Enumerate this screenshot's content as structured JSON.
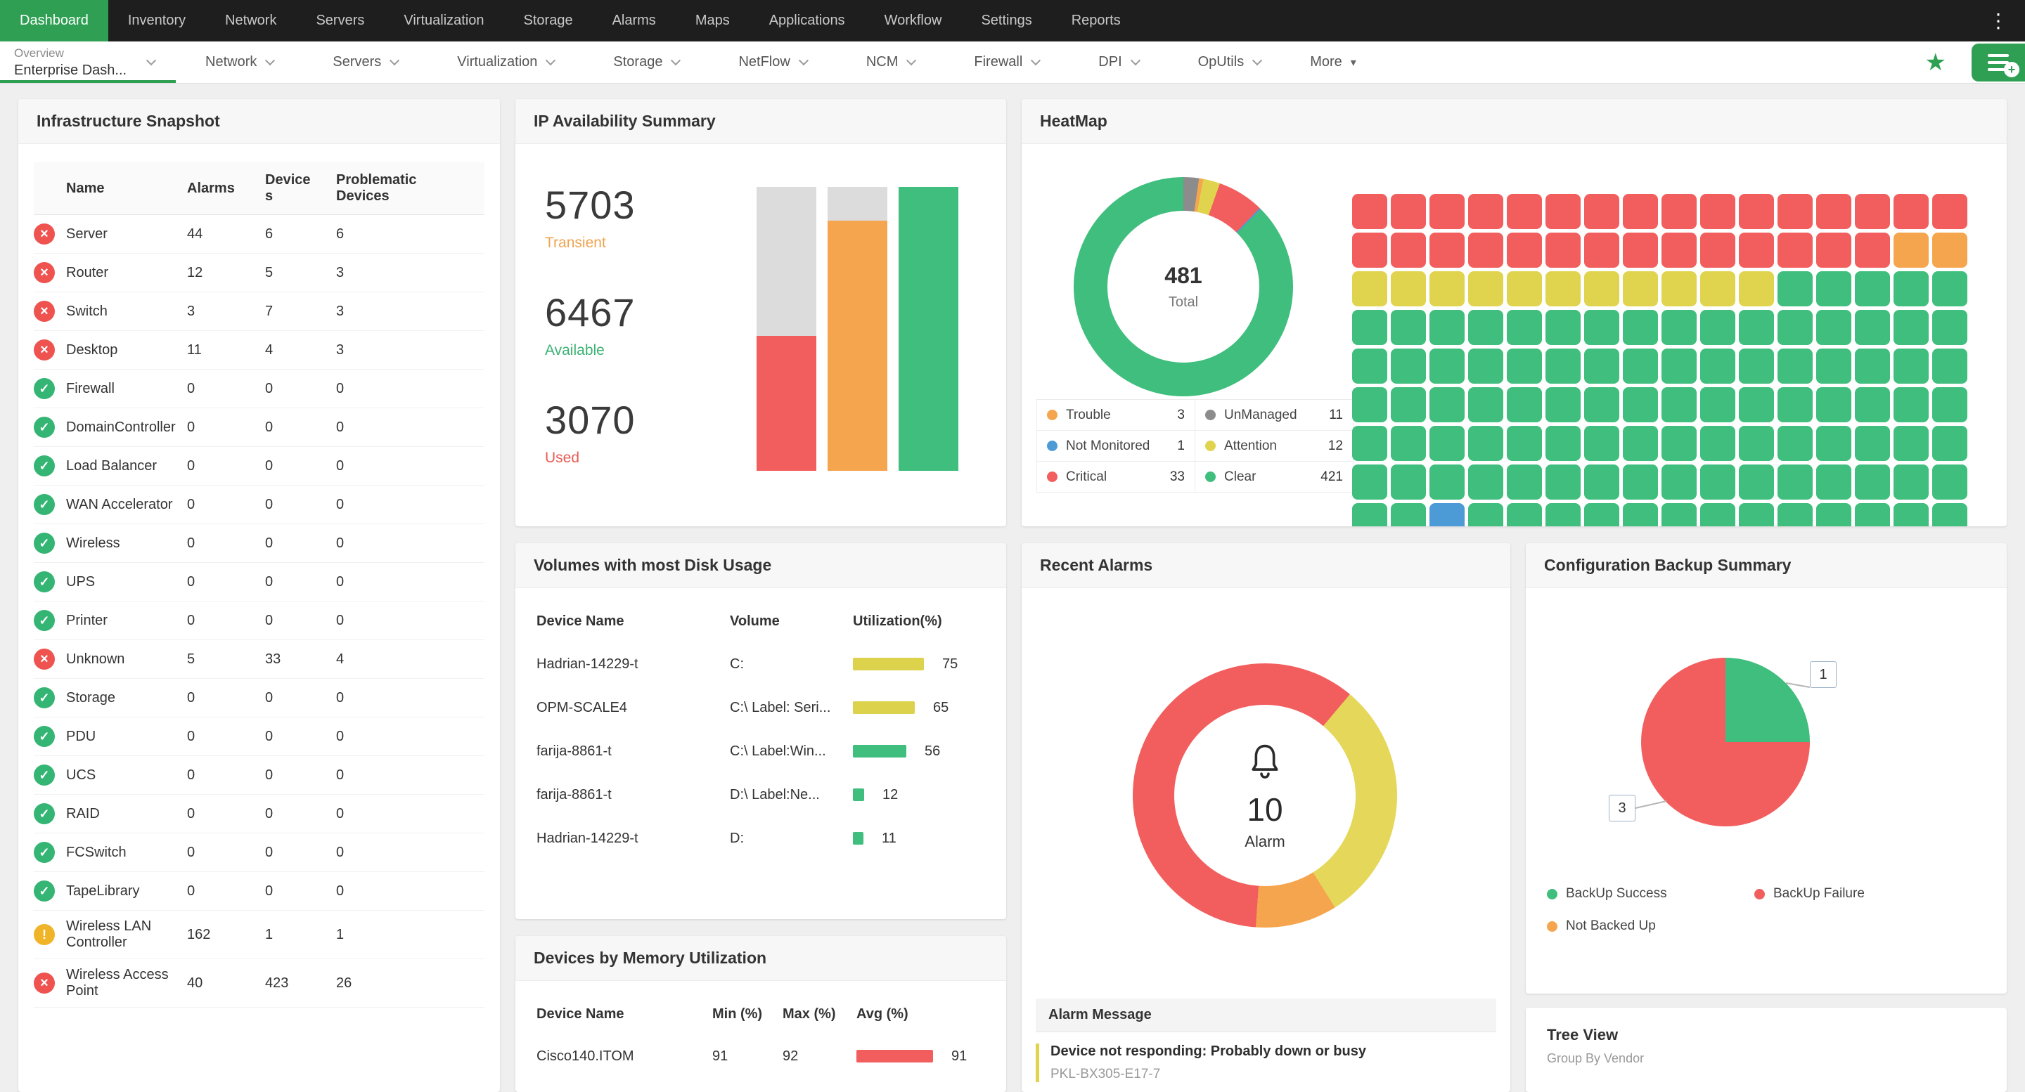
{
  "topnav": {
    "items": [
      "Dashboard",
      "Inventory",
      "Network",
      "Servers",
      "Virtualization",
      "Storage",
      "Alarms",
      "Maps",
      "Applications",
      "Workflow",
      "Settings",
      "Reports"
    ],
    "active_index": 0
  },
  "tabbar": {
    "active_tab": {
      "small": "Overview",
      "label": "Enterprise Dash..."
    },
    "tabs": [
      "Network",
      "Servers",
      "Virtualization",
      "Storage",
      "NetFlow",
      "NCM",
      "Firewall",
      "DPI",
      "OpUtils"
    ],
    "more": "More"
  },
  "infrastructure": {
    "title": "Infrastructure Snapshot",
    "columns": [
      "Name",
      "Alarms",
      "Devices",
      "Problematic Devices"
    ],
    "rows": [
      {
        "status": "critical",
        "name": "Server",
        "alarms": "44",
        "devices": "6",
        "problematic": "6"
      },
      {
        "status": "critical",
        "name": "Router",
        "alarms": "12",
        "devices": "5",
        "problematic": "3"
      },
      {
        "status": "critical",
        "name": "Switch",
        "alarms": "3",
        "devices": "7",
        "problematic": "3"
      },
      {
        "status": "critical",
        "name": "Desktop",
        "alarms": "11",
        "devices": "4",
        "problematic": "3"
      },
      {
        "status": "ok",
        "name": "Firewall",
        "alarms": "0",
        "devices": "0",
        "problematic": "0"
      },
      {
        "status": "ok",
        "name": "DomainController",
        "alarms": "0",
        "devices": "0",
        "problematic": "0"
      },
      {
        "status": "ok",
        "name": "Load Balancer",
        "alarms": "0",
        "devices": "0",
        "problematic": "0"
      },
      {
        "status": "ok",
        "name": "WAN Accelerator",
        "alarms": "0",
        "devices": "0",
        "problematic": "0"
      },
      {
        "status": "ok",
        "name": "Wireless",
        "alarms": "0",
        "devices": "0",
        "problematic": "0"
      },
      {
        "status": "ok",
        "name": "UPS",
        "alarms": "0",
        "devices": "0",
        "problematic": "0"
      },
      {
        "status": "ok",
        "name": "Printer",
        "alarms": "0",
        "devices": "0",
        "problematic": "0"
      },
      {
        "status": "critical",
        "name": "Unknown",
        "alarms": "5",
        "devices": "33",
        "problematic": "4"
      },
      {
        "status": "ok",
        "name": "Storage",
        "alarms": "0",
        "devices": "0",
        "problematic": "0"
      },
      {
        "status": "ok",
        "name": "PDU",
        "alarms": "0",
        "devices": "0",
        "problematic": "0"
      },
      {
        "status": "ok",
        "name": "UCS",
        "alarms": "0",
        "devices": "0",
        "problematic": "0"
      },
      {
        "status": "ok",
        "name": "RAID",
        "alarms": "0",
        "devices": "0",
        "problematic": "0"
      },
      {
        "status": "ok",
        "name": "FCSwitch",
        "alarms": "0",
        "devices": "0",
        "problematic": "0"
      },
      {
        "status": "ok",
        "name": "TapeLibrary",
        "alarms": "0",
        "devices": "0",
        "problematic": "0"
      },
      {
        "status": "warn",
        "name": "Wireless LAN Controller",
        "alarms": "162",
        "devices": "1",
        "problematic": "1"
      },
      {
        "status": "critical",
        "name": "Wireless Access Point",
        "alarms": "40",
        "devices": "423",
        "problematic": "26"
      }
    ]
  },
  "ip_availability": {
    "title": "IP Availability Summary",
    "stats": [
      {
        "value": "5703",
        "label": "Transient",
        "color": "#F0A450"
      },
      {
        "value": "6467",
        "label": "Available",
        "color": "#3BB273"
      },
      {
        "value": "3070",
        "label": "Used",
        "color": "#E85C55"
      }
    ],
    "chart_data": {
      "type": "bar",
      "categories": [
        "Used",
        "Transient",
        "Available"
      ],
      "values": [
        3070,
        5703,
        6467
      ],
      "colors": [
        "#F25E5E",
        "#F5A54E",
        "#3FBE7D"
      ],
      "ylim": [
        0,
        6467
      ],
      "track_color": "#DCDCDC"
    }
  },
  "heatmap": {
    "title": "HeatMap",
    "center_value": "481",
    "center_label": "Total",
    "chart_data": {
      "type": "pie",
      "total": 481,
      "start_angle": 0,
      "segments": [
        {
          "label": "UnManaged",
          "value": 11,
          "color": "#8C8C8C"
        },
        {
          "label": "Trouble",
          "value": 3,
          "color": "#F5A54E"
        },
        {
          "label": "Attention",
          "value": 12,
          "color": "#E0D44F"
        },
        {
          "label": "Critical",
          "value": 33,
          "color": "#F25E5E"
        },
        {
          "label": "Not Monitored",
          "value": 1,
          "color": "#4D9BD6"
        },
        {
          "label": "Clear",
          "value": 421,
          "color": "#3FBE7D"
        }
      ]
    },
    "legend": [
      {
        "label": "Trouble",
        "value": "3",
        "color": "#F5A54E"
      },
      {
        "label": "UnManaged",
        "value": "11",
        "color": "#8C8C8C"
      },
      {
        "label": "Not Monitored",
        "value": "1",
        "color": "#4D9BD6"
      },
      {
        "label": "Attention",
        "value": "12",
        "color": "#E0D44F"
      },
      {
        "label": "Critical",
        "value": "33",
        "color": "#F25E5E"
      },
      {
        "label": "Clear",
        "value": "421",
        "color": "#3FBE7D"
      }
    ],
    "grid_rows": [
      "rrrrrrrrrrrrrrrr",
      "rrrrrrrrrrrrrroo",
      "yyyyyyyyyyyggggg",
      "gggggggggggggggg",
      "gggggggggggggggg",
      "gggggggggggggggg",
      "gggggggggggggggg",
      "gggggggggggggggg",
      "ggbggggggggggggg"
    ],
    "grid_colors": {
      "r": "#F25E5E",
      "o": "#F5A54E",
      "y": "#E0D44F",
      "g": "#3FBE7D",
      "b": "#4D9BD6"
    }
  },
  "volumes": {
    "title": "Volumes with most Disk Usage",
    "columns": [
      "Device Name",
      "Volume",
      "Utilization(%)"
    ],
    "rows": [
      {
        "device": "Hadrian-14229-t",
        "volume": "C:",
        "value": 75,
        "color": "#DCD24B"
      },
      {
        "device": "OPM-SCALE4",
        "volume": "C:\\ Label: Seri...",
        "value": 65,
        "color": "#DCD24B"
      },
      {
        "device": "farija-8861-t",
        "volume": "C:\\ Label:Win...",
        "value": 56,
        "color": "#3FBE7D"
      },
      {
        "device": "farija-8861-t",
        "volume": "D:\\ Label:Ne...",
        "value": 12,
        "color": "#3FBE7D"
      },
      {
        "device": "Hadrian-14229-t",
        "volume": "D:",
        "value": 11,
        "color": "#3FBE7D"
      }
    ]
  },
  "recent_alarms": {
    "title": "Recent Alarms",
    "center_value": "10",
    "center_label": "Alarm",
    "table_header": "Alarm Message",
    "chart_data": {
      "type": "pie",
      "total": 10,
      "start_angle": 184,
      "segments": [
        {
          "label": "Critical",
          "value": 6,
          "color": "#F25E5E"
        },
        {
          "label": "Attention",
          "value": 3,
          "color": "#E5D75A"
        },
        {
          "label": "Trouble",
          "value": 1,
          "color": "#F5A54E"
        }
      ]
    },
    "alarms": [
      {
        "message": "Device not responding: Probably down or busy",
        "device": "PKL-BX305-E17-7",
        "severity_color": "#E0D44F"
      }
    ]
  },
  "config_backup": {
    "title": "Configuration Backup Summary",
    "chart_data": {
      "type": "pie",
      "start_angle": 0,
      "segments": [
        {
          "label": "BackUp Success",
          "value": 1,
          "color": "#3FBE7D"
        },
        {
          "label": "BackUp Failure",
          "value": 3,
          "color": "#F25E5E"
        }
      ]
    },
    "callouts": {
      "success": "1",
      "failure": "3"
    },
    "legend": [
      {
        "label": "BackUp Success",
        "color": "#3FBE7D"
      },
      {
        "label": "BackUp Failure",
        "color": "#F25E5E"
      },
      {
        "label": "Not Backed Up",
        "color": "#F5A54E"
      }
    ]
  },
  "tree_view": {
    "title": "Tree View",
    "subtitle": "Group By Vendor"
  },
  "memory": {
    "title": "Devices by Memory Utilization",
    "columns": [
      "Device Name",
      "Min (%)",
      "Max (%)",
      "Avg (%)"
    ],
    "rows": [
      {
        "device": "Cisco140.ITOM",
        "min": "91",
        "max": "92",
        "avg": 91,
        "color": "#F25E5E"
      }
    ]
  }
}
